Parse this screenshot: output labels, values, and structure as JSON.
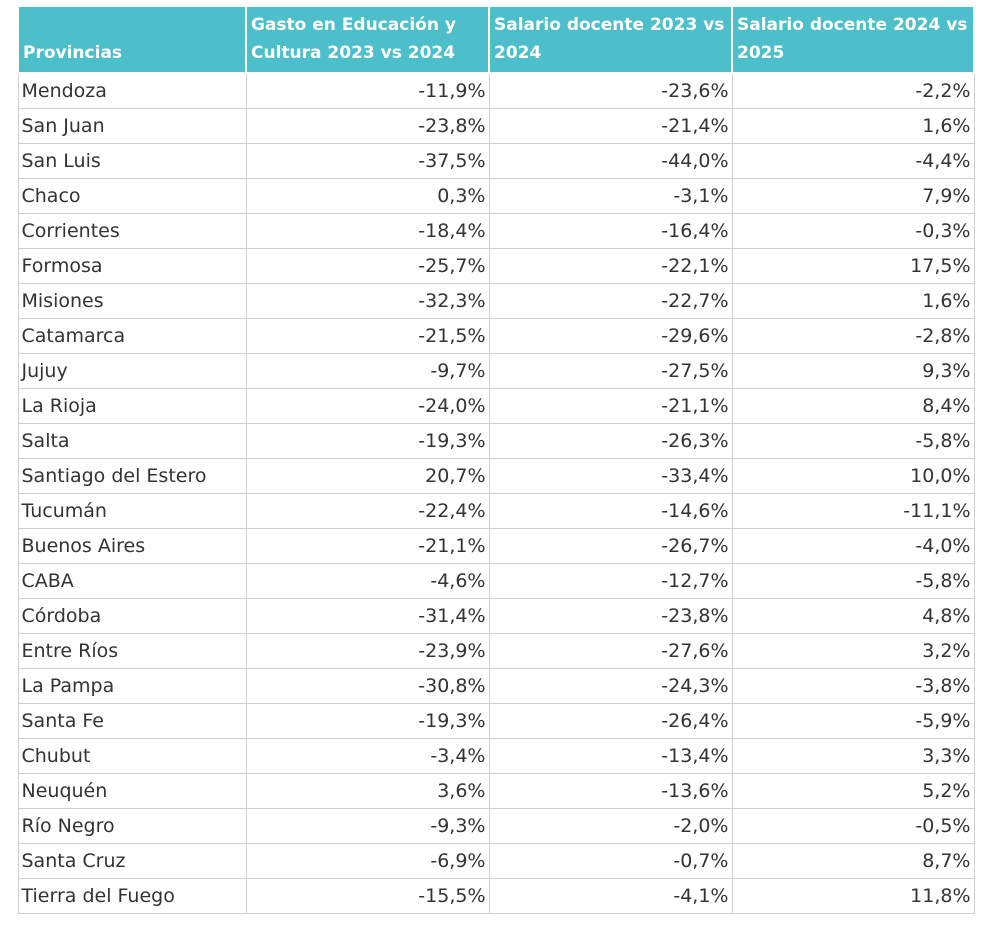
{
  "table": {
    "header": [
      "Provincias",
      "Gasto en Educación y Cultura 2023 vs 2024",
      "Salario docente 2023 vs 2024",
      "Salario docente 2024 vs 2025"
    ],
    "rows": [
      [
        "Mendoza",
        "-11,9%",
        "-23,6%",
        "-2,2%"
      ],
      [
        "San Juan",
        "-23,8%",
        "-21,4%",
        "1,6%"
      ],
      [
        "San Luis",
        "-37,5%",
        "-44,0%",
        "-4,4%"
      ],
      [
        "Chaco",
        "0,3%",
        "-3,1%",
        "7,9%"
      ],
      [
        "Corrientes",
        "-18,4%",
        "-16,4%",
        "-0,3%"
      ],
      [
        "Formosa",
        "-25,7%",
        "-22,1%",
        "17,5%"
      ],
      [
        "Misiones",
        "-32,3%",
        "-22,7%",
        "1,6%"
      ],
      [
        "Catamarca",
        "-21,5%",
        "-29,6%",
        "-2,8%"
      ],
      [
        "Jujuy",
        "-9,7%",
        "-27,5%",
        "9,3%"
      ],
      [
        "La Rioja",
        "-24,0%",
        "-21,1%",
        "8,4%"
      ],
      [
        "Salta",
        "-19,3%",
        "-26,3%",
        "-5,8%"
      ],
      [
        "Santiago del Estero",
        "20,7%",
        "-33,4%",
        "10,0%"
      ],
      [
        "Tucumán",
        "-22,4%",
        "-14,6%",
        "-11,1%"
      ],
      [
        "Buenos Aires",
        "-21,1%",
        "-26,7%",
        "-4,0%"
      ],
      [
        "CABA",
        "-4,6%",
        "-12,7%",
        "-5,8%"
      ],
      [
        "Córdoba",
        "-31,4%",
        "-23,8%",
        "4,8%"
      ],
      [
        "Entre Ríos",
        "-23,9%",
        "-27,6%",
        "3,2%"
      ],
      [
        "La Pampa",
        "-30,8%",
        "-24,3%",
        "-3,8%"
      ],
      [
        "Santa Fe",
        "-19,3%",
        "-26,4%",
        "-5,9%"
      ],
      [
        "Chubut",
        "-3,4%",
        "-13,4%",
        "3,3%"
      ],
      [
        "Neuquén",
        "3,6%",
        "-13,6%",
        "5,2%"
      ],
      [
        "Río Negro",
        "-9,3%",
        "-2,0%",
        "-0,5%"
      ],
      [
        "Santa Cruz",
        "-6,9%",
        "-0,7%",
        "8,7%"
      ],
      [
        "Tierra del Fuego",
        "-15,5%",
        "-4,1%",
        "11,8%"
      ]
    ]
  }
}
